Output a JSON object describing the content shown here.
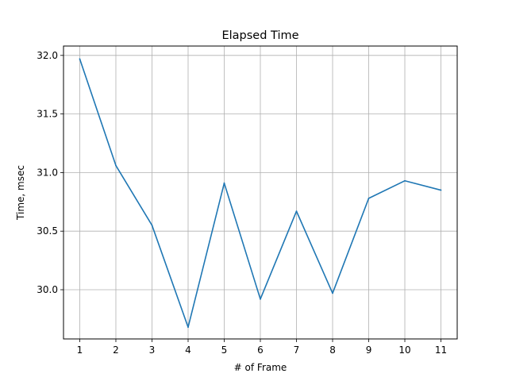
{
  "chart_data": {
    "type": "line",
    "title": "Elapsed Time",
    "xlabel": "# of Frame",
    "ylabel": "Time, msec",
    "x": [
      1,
      2,
      3,
      4,
      5,
      6,
      7,
      8,
      9,
      10,
      11
    ],
    "series": [
      {
        "values": [
          31.97,
          31.06,
          30.55,
          29.68,
          30.91,
          29.92,
          30.67,
          29.97,
          30.78,
          30.93,
          30.85
        ],
        "color": "#1f77b4"
      }
    ],
    "xlim": [
      0.55,
      11.45
    ],
    "ylim": [
      29.58,
      32.08
    ],
    "xticks": [
      "1",
      "2",
      "3",
      "4",
      "5",
      "6",
      "7",
      "8",
      "9",
      "10",
      "11"
    ],
    "yticks": [
      "30.0",
      "30.5",
      "31.0",
      "31.5",
      "32.0"
    ],
    "grid": true,
    "legend": "none"
  }
}
